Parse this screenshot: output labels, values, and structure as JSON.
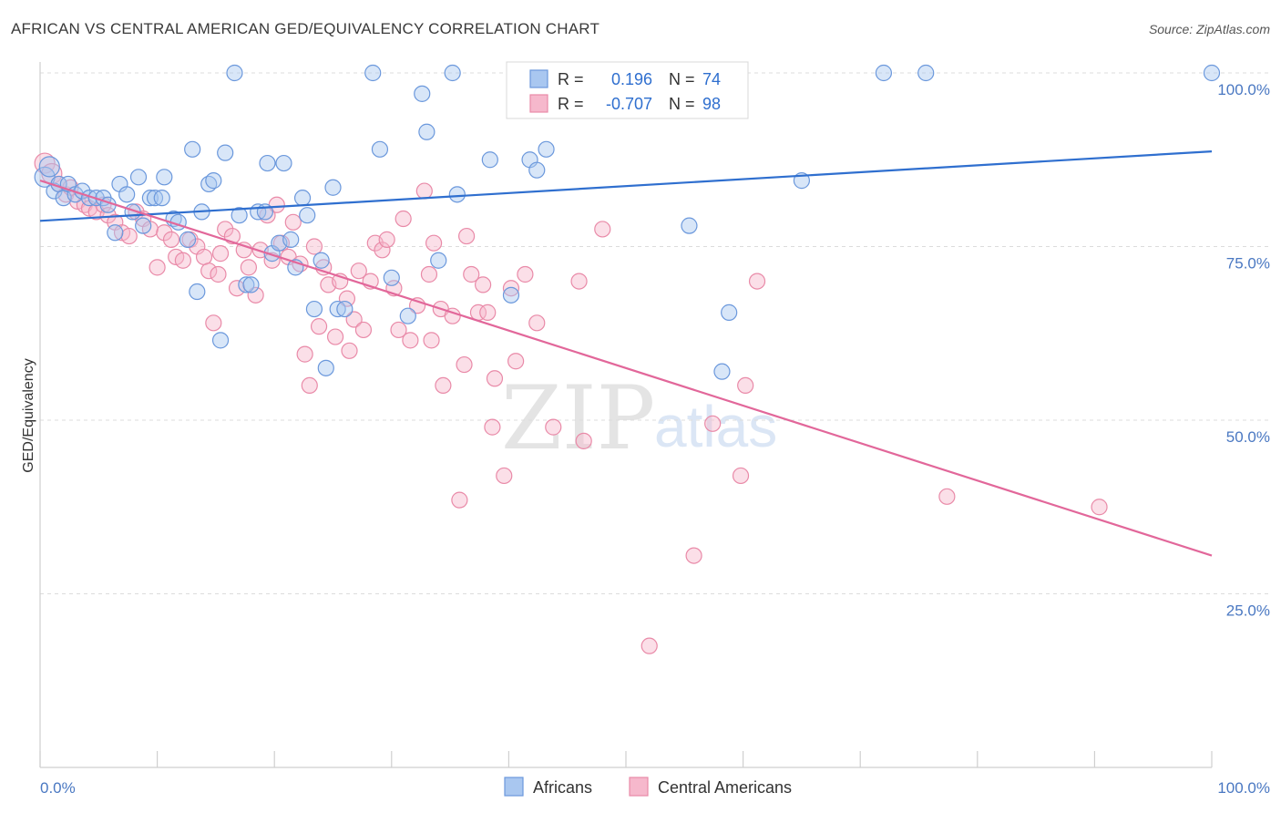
{
  "header": {
    "title": "AFRICAN VS CENTRAL AMERICAN GED/EQUIVALENCY CORRELATION CHART",
    "source": "Source: ZipAtlas.com"
  },
  "watermark": {
    "zip": "ZIP",
    "atlas": "atlas"
  },
  "colors": {
    "blue_fill": "#a9c7f0",
    "blue_stroke": "#6b98dc",
    "blue_line": "#2f6fcf",
    "pink_fill": "#f6b8cc",
    "pink_stroke": "#e98aa8",
    "pink_line": "#e2679a",
    "tick_text": "#4a78c2"
  },
  "legend": {
    "rows": [
      {
        "r_label": "R =",
        "r_value": "0.196",
        "n_label": "N =",
        "n_value": "74"
      },
      {
        "r_label": "R =",
        "r_value": "-0.707",
        "n_label": "N =",
        "n_value": "98"
      }
    ]
  },
  "bottom_legend": {
    "africans": "Africans",
    "central_americans": "Central Americans"
  },
  "chart_data": {
    "type": "scatter",
    "title": "AFRICAN VS CENTRAL AMERICAN GED/EQUIVALENCY CORRELATION CHART",
    "xlabel": "",
    "ylabel": "GED/Equivalency",
    "xlim": [
      0,
      100
    ],
    "ylim": [
      0,
      100
    ],
    "x_tick_labels": [
      "0.0%",
      "100.0%"
    ],
    "y_tick_labels": [
      "100.0%",
      "75.0%",
      "50.0%",
      "25.0%"
    ],
    "y_ticks": [
      100,
      75,
      50,
      25
    ],
    "grid": true,
    "legend_position": "top-center",
    "series": [
      {
        "name": "Africans",
        "R": 0.196,
        "N": 74,
        "trend": {
          "x0": 0,
          "y0": 78.7,
          "x1": 100,
          "y1": 88.7
        },
        "points": [
          [
            0.4,
            85.0
          ],
          [
            0.8,
            86.5
          ],
          [
            1.2,
            83.0
          ],
          [
            1.6,
            84.0
          ],
          [
            2.0,
            82.0
          ],
          [
            2.4,
            84.0
          ],
          [
            3.0,
            82.5
          ],
          [
            3.6,
            83.0
          ],
          [
            4.2,
            82.0
          ],
          [
            4.8,
            82.0
          ],
          [
            5.4,
            82.0
          ],
          [
            5.8,
            81.0
          ],
          [
            6.4,
            77.0
          ],
          [
            6.8,
            84.0
          ],
          [
            7.4,
            82.5
          ],
          [
            7.9,
            80.0
          ],
          [
            8.4,
            85.0
          ],
          [
            8.8,
            78.0
          ],
          [
            9.4,
            82.0
          ],
          [
            9.8,
            82.0
          ],
          [
            10.4,
            82.0
          ],
          [
            10.6,
            85.0
          ],
          [
            11.4,
            79.0
          ],
          [
            11.8,
            78.5
          ],
          [
            12.6,
            76.0
          ],
          [
            13.0,
            89.0
          ],
          [
            13.4,
            68.5
          ],
          [
            13.8,
            80.0
          ],
          [
            14.4,
            84.0
          ],
          [
            14.8,
            84.5
          ],
          [
            15.4,
            61.5
          ],
          [
            15.8,
            88.5
          ],
          [
            16.6,
            100.0
          ],
          [
            17.0,
            79.5
          ],
          [
            17.6,
            69.5
          ],
          [
            18.0,
            69.5
          ],
          [
            18.6,
            80.0
          ],
          [
            19.2,
            80.0
          ],
          [
            19.4,
            87.0
          ],
          [
            19.8,
            74.0
          ],
          [
            20.4,
            75.5
          ],
          [
            20.8,
            87.0
          ],
          [
            21.4,
            76.0
          ],
          [
            21.8,
            72.0
          ],
          [
            22.4,
            82.0
          ],
          [
            22.8,
            79.5
          ],
          [
            23.4,
            66.0
          ],
          [
            24.0,
            73.0
          ],
          [
            24.4,
            57.5
          ],
          [
            25.0,
            83.5
          ],
          [
            25.4,
            66.0
          ],
          [
            26.0,
            66.0
          ],
          [
            28.4,
            100.0
          ],
          [
            29.0,
            89.0
          ],
          [
            30.0,
            70.5
          ],
          [
            31.4,
            65.0
          ],
          [
            32.6,
            97.0
          ],
          [
            33.0,
            91.5
          ],
          [
            34.0,
            73.0
          ],
          [
            35.2,
            100.0
          ],
          [
            35.6,
            82.5
          ],
          [
            38.4,
            87.5
          ],
          [
            40.2,
            68.0
          ],
          [
            41.8,
            87.5
          ],
          [
            42.4,
            86.0
          ],
          [
            43.2,
            89.0
          ],
          [
            52.4,
            100.0
          ],
          [
            55.4,
            78.0
          ],
          [
            58.2,
            57.0
          ],
          [
            58.8,
            65.5
          ],
          [
            65.0,
            84.5
          ],
          [
            72.0,
            100.0
          ],
          [
            75.6,
            100.0
          ],
          [
            100.0,
            100.0
          ]
        ]
      },
      {
        "name": "Central Americans",
        "R": -0.707,
        "N": 98,
        "trend": {
          "x0": 0,
          "y0": 84.5,
          "x1": 100,
          "y1": 30.5
        },
        "points": [
          [
            0.4,
            87.0
          ],
          [
            1.0,
            85.5
          ],
          [
            1.6,
            84.0
          ],
          [
            2.2,
            82.5
          ],
          [
            2.6,
            83.5
          ],
          [
            3.2,
            81.5
          ],
          [
            3.8,
            81.0
          ],
          [
            4.2,
            80.5
          ],
          [
            4.8,
            80.0
          ],
          [
            5.4,
            81.0
          ],
          [
            5.8,
            79.5
          ],
          [
            6.4,
            78.5
          ],
          [
            7.0,
            77.0
          ],
          [
            7.6,
            76.5
          ],
          [
            8.2,
            80.0
          ],
          [
            8.8,
            79.0
          ],
          [
            9.4,
            77.5
          ],
          [
            10.0,
            72.0
          ],
          [
            10.6,
            77.0
          ],
          [
            11.2,
            76.0
          ],
          [
            11.6,
            73.5
          ],
          [
            12.2,
            73.0
          ],
          [
            12.8,
            76.0
          ],
          [
            13.4,
            75.0
          ],
          [
            14.0,
            73.5
          ],
          [
            14.4,
            71.5
          ],
          [
            14.8,
            64.0
          ],
          [
            15.4,
            74.0
          ],
          [
            15.8,
            77.5
          ],
          [
            16.4,
            76.5
          ],
          [
            16.8,
            69.0
          ],
          [
            17.4,
            74.5
          ],
          [
            17.8,
            72.0
          ],
          [
            18.4,
            68.0
          ],
          [
            18.8,
            74.5
          ],
          [
            19.4,
            79.5
          ],
          [
            19.8,
            73.0
          ],
          [
            20.2,
            81.0
          ],
          [
            20.6,
            75.5
          ],
          [
            21.2,
            73.5
          ],
          [
            21.6,
            78.5
          ],
          [
            22.2,
            72.5
          ],
          [
            22.6,
            59.5
          ],
          [
            23.0,
            55.0
          ],
          [
            23.4,
            75.0
          ],
          [
            23.8,
            63.5
          ],
          [
            24.2,
            72.0
          ],
          [
            24.6,
            69.5
          ],
          [
            25.2,
            62.0
          ],
          [
            25.6,
            70.0
          ],
          [
            26.2,
            67.5
          ],
          [
            26.8,
            64.5
          ],
          [
            27.2,
            71.5
          ],
          [
            27.6,
            63.0
          ],
          [
            28.2,
            70.0
          ],
          [
            28.6,
            75.5
          ],
          [
            29.2,
            74.5
          ],
          [
            29.6,
            76.0
          ],
          [
            30.2,
            69.0
          ],
          [
            30.6,
            63.0
          ],
          [
            31.0,
            79.0
          ],
          [
            31.6,
            61.5
          ],
          [
            32.2,
            66.5
          ],
          [
            32.8,
            83.0
          ],
          [
            33.2,
            71.0
          ],
          [
            33.6,
            75.5
          ],
          [
            34.2,
            66.0
          ],
          [
            34.4,
            55.0
          ],
          [
            35.2,
            65.0
          ],
          [
            35.8,
            38.5
          ],
          [
            36.4,
            76.5
          ],
          [
            36.8,
            71.0
          ],
          [
            37.4,
            65.5
          ],
          [
            37.8,
            69.5
          ],
          [
            38.2,
            65.5
          ],
          [
            38.6,
            49.0
          ],
          [
            38.8,
            56.0
          ],
          [
            39.6,
            42.0
          ],
          [
            40.2,
            69.0
          ],
          [
            40.6,
            58.5
          ],
          [
            41.4,
            71.0
          ],
          [
            42.4,
            64.0
          ],
          [
            46.0,
            70.0
          ],
          [
            46.4,
            47.0
          ],
          [
            48.0,
            77.5
          ],
          [
            52.0,
            17.5
          ],
          [
            55.8,
            30.5
          ],
          [
            57.4,
            49.5
          ],
          [
            59.8,
            42.0
          ],
          [
            60.2,
            55.0
          ],
          [
            61.2,
            70.0
          ],
          [
            77.4,
            39.0
          ],
          [
            90.4,
            37.5
          ],
          [
            43.8,
            49.0
          ],
          [
            36.2,
            58.0
          ],
          [
            33.4,
            61.5
          ],
          [
            26.4,
            60.0
          ],
          [
            15.2,
            71.0
          ]
        ]
      }
    ]
  }
}
